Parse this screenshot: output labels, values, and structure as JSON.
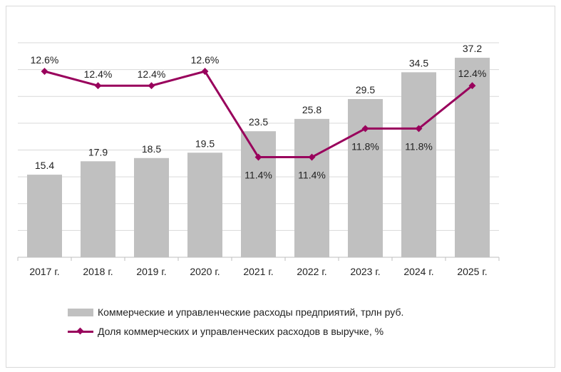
{
  "chart_data": {
    "type": "bar+line",
    "categories": [
      "2017 г.",
      "2018 г.",
      "2019 г.",
      "2020 г.",
      "2021 г.",
      "2022 г.",
      "2023 г.",
      "2024 г.",
      "2025 г."
    ],
    "series": [
      {
        "name": "Коммерческие и управленческие расходы предприятий, трлн руб.",
        "type": "bar",
        "color": "#c0c0c0",
        "values": [
          15.4,
          17.9,
          18.5,
          19.5,
          23.5,
          25.8,
          29.5,
          34.5,
          37.2
        ],
        "labels": [
          "15.4",
          "17.9",
          "18.5",
          "19.5",
          "23.5",
          "25.8",
          "29.5",
          "34.5",
          "37.2"
        ]
      },
      {
        "name": "Доля коммерческих и управленческих расходов в выручке, %",
        "type": "line",
        "color": "#99005c",
        "values": [
          12.6,
          12.4,
          12.4,
          12.6,
          11.4,
          11.4,
          11.8,
          11.8,
          12.4
        ],
        "labels": [
          "12.6%",
          "12.4%",
          "12.4%",
          "12.6%",
          "11.4%",
          "11.4%",
          "11.8%",
          "11.8%",
          "12.4%"
        ]
      }
    ],
    "ylim": [
      0,
      40
    ],
    "y2lim": [
      10,
      13
    ],
    "grid": true,
    "legend": "bottom"
  }
}
